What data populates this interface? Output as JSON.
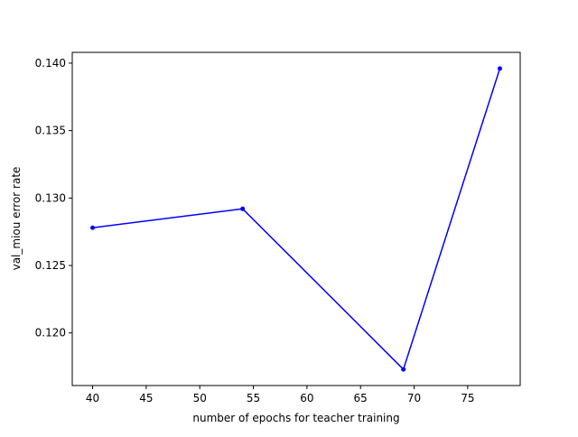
{
  "chart_data": {
    "type": "line",
    "title": "",
    "xlabel": "number of epochs for teacher training",
    "ylabel": "val_miou error rate",
    "xlim": [
      38.1,
      79.9
    ],
    "ylim": [
      0.1161,
      0.1408
    ],
    "xticks": [
      40,
      45,
      50,
      55,
      60,
      65,
      70,
      75
    ],
    "xtick_labels": [
      "40",
      "45",
      "50",
      "55",
      "60",
      "65",
      "70",
      "75"
    ],
    "yticks": [
      0.12,
      0.125,
      0.13,
      0.135,
      0.14
    ],
    "ytick_labels": [
      "0.120",
      "0.125",
      "0.130",
      "0.135",
      "0.140"
    ],
    "grid": false,
    "series": [
      {
        "color": "#0000ff",
        "marker": "circle",
        "x": [
          40,
          54,
          69,
          78
        ],
        "y": [
          0.1278,
          0.1292,
          0.1173,
          0.1396
        ]
      }
    ]
  }
}
